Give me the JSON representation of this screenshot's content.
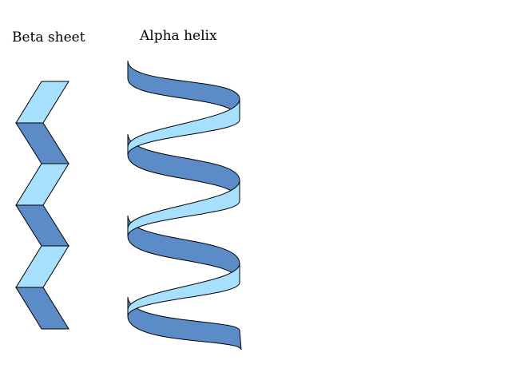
{
  "labels": {
    "beta_sheet": "Beta sheet",
    "alpha_helix": "Alpha helix"
  },
  "colors": {
    "light": "#a6e0fd",
    "dark": "#5b8cc8",
    "stroke": "#000000"
  }
}
